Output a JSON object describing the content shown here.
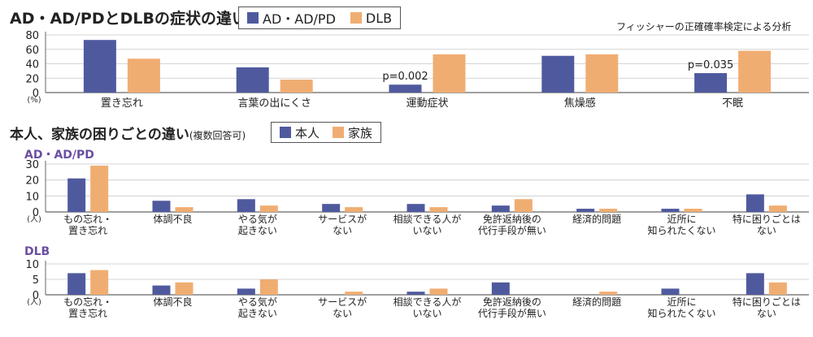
{
  "colors": {
    "series1": "#4f5a9e",
    "series2": "#f0ad72",
    "axis": "#888888",
    "heading": "#6b4fa0"
  },
  "chart_data": [
    {
      "type": "bar",
      "title": "AD・AD/PDとDLBの症状の違い",
      "note": "フィッシャーの正確確率検定による分析",
      "unit_label": "(%)",
      "categories": [
        "置き忘れ",
        "言葉の出にくさ",
        "運動症状",
        "焦燥感",
        "不眠"
      ],
      "series": [
        {
          "name": "AD・AD/PD",
          "values": [
            73,
            35,
            11,
            51,
            27
          ]
        },
        {
          "name": "DLB",
          "values": [
            47,
            18,
            53,
            53,
            58
          ]
        }
      ],
      "annotations": [
        "",
        "",
        "p=0.002",
        "",
        "p=0.035"
      ],
      "ylim": [
        0,
        80
      ],
      "yticks": [
        0,
        20,
        40,
        60,
        80
      ]
    },
    {
      "type": "bar",
      "title": "本人、家族の困りごとの違い",
      "title_suffix": "(複数回答可)",
      "subtitle": "AD・AD/PD",
      "unit_label": "(人)",
      "categories": [
        "もの忘れ・\n置き忘れ",
        "体調不良",
        "やる気が\n起きない",
        "サービスが\nない",
        "相談できる人が\nいない",
        "免許返納後の\n代行手段が無い",
        "経済的問題",
        "近所に\n知られたくない",
        "特に困りごとは\nない"
      ],
      "series": [
        {
          "name": "本人",
          "values": [
            21,
            7,
            8,
            5,
            5,
            4,
            2,
            2,
            11
          ]
        },
        {
          "name": "家族",
          "values": [
            29,
            3,
            4,
            3,
            3,
            8,
            2,
            2,
            4
          ]
        }
      ],
      "ylim": [
        0,
        30
      ],
      "yticks": [
        0,
        10,
        20,
        30
      ]
    },
    {
      "type": "bar",
      "subtitle": "DLB",
      "unit_label": "(人)",
      "categories": [
        "もの忘れ・\n置き忘れ",
        "体調不良",
        "やる気が\n起きない",
        "サービスが\nない",
        "相談できる人が\nいない",
        "免許返納後の\n代行手段が無い",
        "経済的問題",
        "近所に\n知られたくない",
        "特に困りごとは\nない"
      ],
      "series": [
        {
          "name": "本人",
          "values": [
            7,
            3,
            2,
            0,
            1,
            4,
            0,
            2,
            7
          ]
        },
        {
          "name": "家族",
          "values": [
            8,
            4,
            5,
            1,
            2,
            0,
            1,
            0,
            4
          ]
        }
      ],
      "ylim": [
        0,
        10
      ],
      "yticks": [
        0,
        5,
        10
      ]
    }
  ]
}
